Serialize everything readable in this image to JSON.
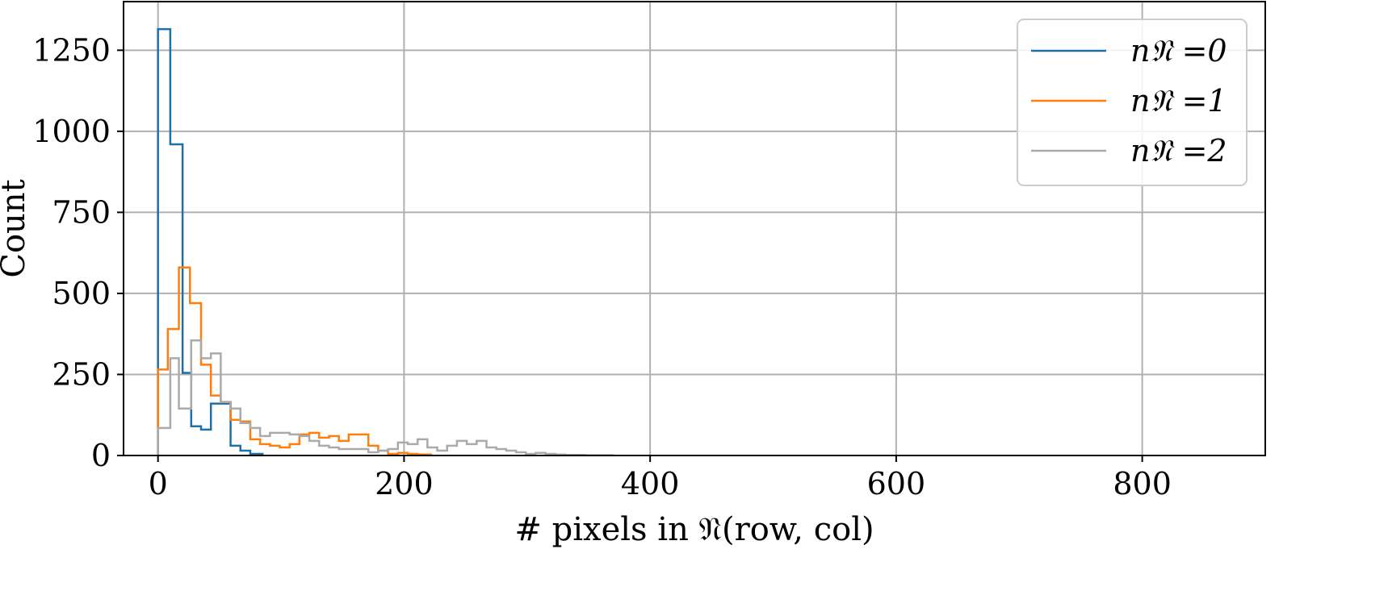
{
  "chart_data": {
    "type": "histogram-step",
    "xlabel": "# pixels in 𝔑(row, col)",
    "ylabel": "Count",
    "xlim": [
      -28,
      900
    ],
    "ylim": [
      0,
      1400
    ],
    "xticks": [
      0,
      200,
      400,
      600,
      800
    ],
    "yticks": [
      0,
      250,
      500,
      750,
      1000,
      1250
    ],
    "grid": true,
    "legend_position": "top-right",
    "series": [
      {
        "name": "n𝔑 =0",
        "color": "#1f6fa8",
        "x": [
          0,
          10,
          20,
          27,
          35,
          43,
          51,
          59,
          67,
          75,
          85
        ],
        "values": [
          1315,
          960,
          255,
          90,
          80,
          160,
          160,
          30,
          15,
          5
        ]
      },
      {
        "name": "n𝔑 =1",
        "color": "#ff7f0e",
        "x": [
          0,
          8,
          17,
          26,
          35,
          43,
          51,
          59,
          67,
          75,
          83,
          91,
          99,
          107,
          115,
          123,
          131,
          139,
          147,
          155,
          163,
          171,
          179,
          187,
          195,
          203,
          211,
          222
        ],
        "values": [
          265,
          390,
          580,
          470,
          280,
          185,
          165,
          110,
          105,
          50,
          35,
          30,
          25,
          35,
          65,
          70,
          55,
          60,
          45,
          65,
          65,
          30,
          15,
          5,
          8,
          5,
          3
        ]
      },
      {
        "name": "n𝔑 =2",
        "color": "#aaaaaa",
        "x": [
          0,
          10,
          17,
          27,
          35,
          43,
          51,
          59,
          67,
          75,
          83,
          91,
          99,
          107,
          115,
          123,
          131,
          139,
          147,
          155,
          163,
          171,
          179,
          187,
          195,
          203,
          211,
          219,
          227,
          235,
          243,
          251,
          259,
          267,
          275,
          283,
          291,
          299,
          307,
          315,
          323,
          331,
          339,
          347,
          355,
          370
        ],
        "values": [
          85,
          300,
          145,
          355,
          300,
          315,
          165,
          145,
          100,
          85,
          60,
          70,
          70,
          65,
          60,
          45,
          30,
          25,
          20,
          20,
          20,
          10,
          15,
          20,
          40,
          35,
          50,
          25,
          15,
          30,
          45,
          35,
          45,
          25,
          20,
          15,
          10,
          5,
          8,
          5,
          3,
          2,
          2,
          1,
          1
        ]
      }
    ]
  }
}
